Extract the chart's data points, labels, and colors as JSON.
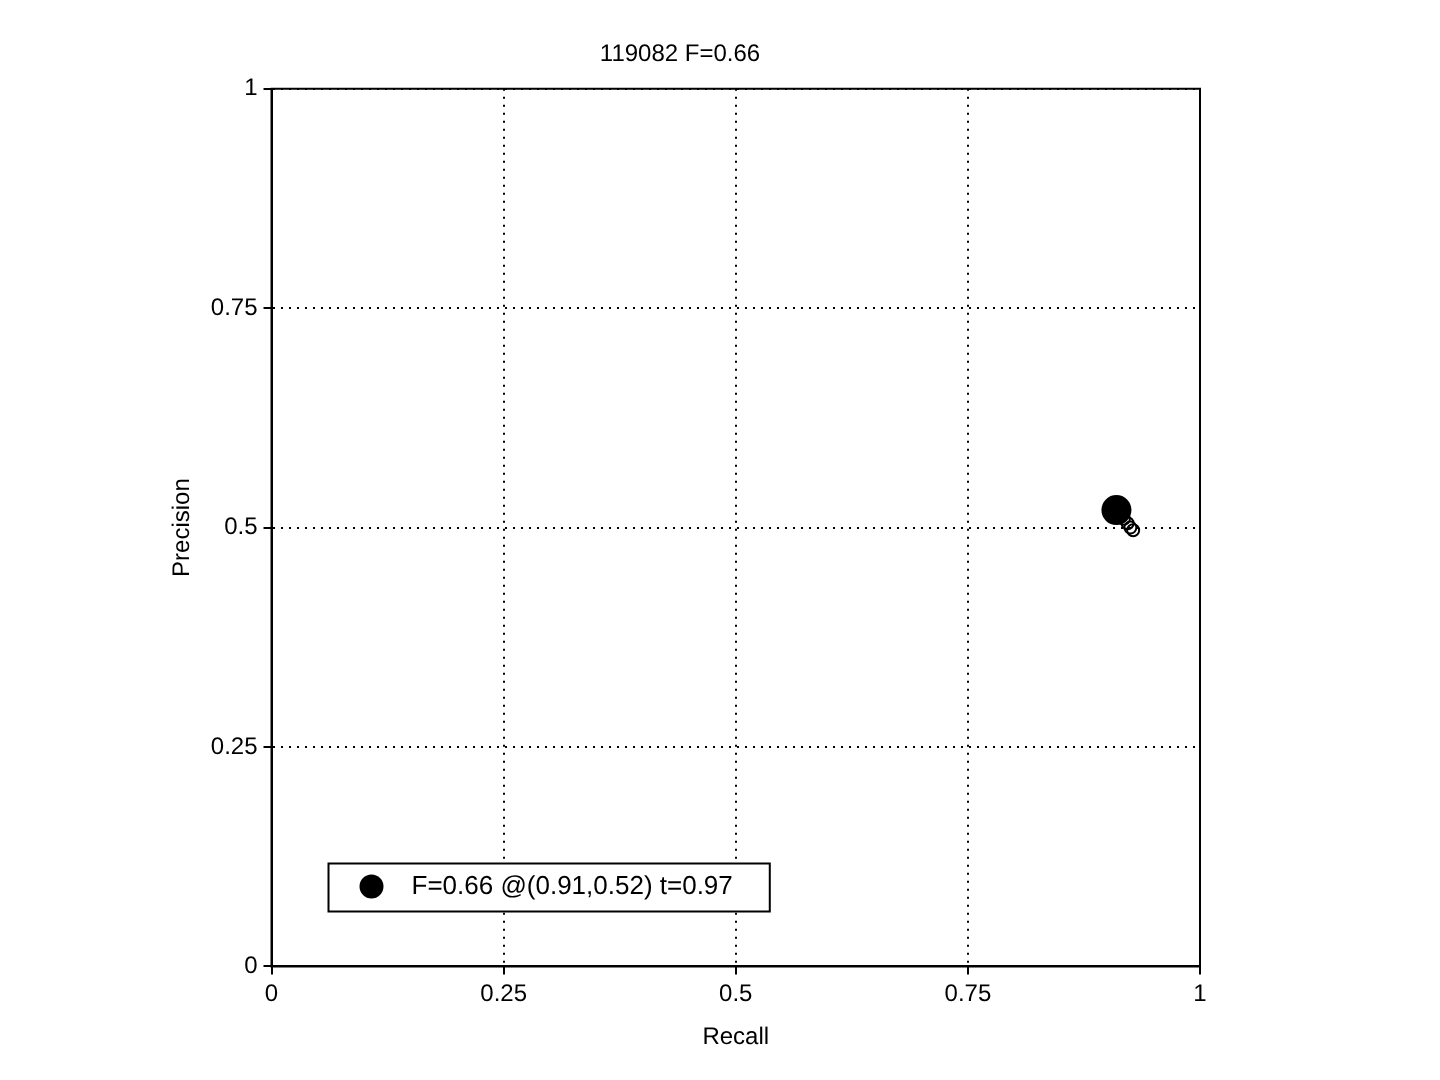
{
  "chart_data": {
    "type": "scatter",
    "title": "119082 F=0.66",
    "xlabel": "Recall",
    "ylabel": "Precision",
    "xlim": [
      0,
      1
    ],
    "ylim": [
      0,
      1
    ],
    "xticks": [
      0,
      0.25,
      0.5,
      0.75,
      1
    ],
    "yticks": [
      0,
      0.25,
      0.5,
      0.75,
      1
    ],
    "grid": true,
    "legend": "bottom left",
    "series": [
      {
        "color": "#000000",
        "marker": "circle",
        "x": [
          0.918,
          0.922,
          0.925,
          0.928
        ],
        "values": [
          0.51,
          0.505,
          0.5,
          0.497
        ]
      },
      {
        "name": "F=0.66 @(0.91,0.52) t=0.97",
        "color": "#000000",
        "marker": "circle",
        "x": [
          0.91
        ],
        "values": [
          0.52
        ]
      }
    ]
  }
}
